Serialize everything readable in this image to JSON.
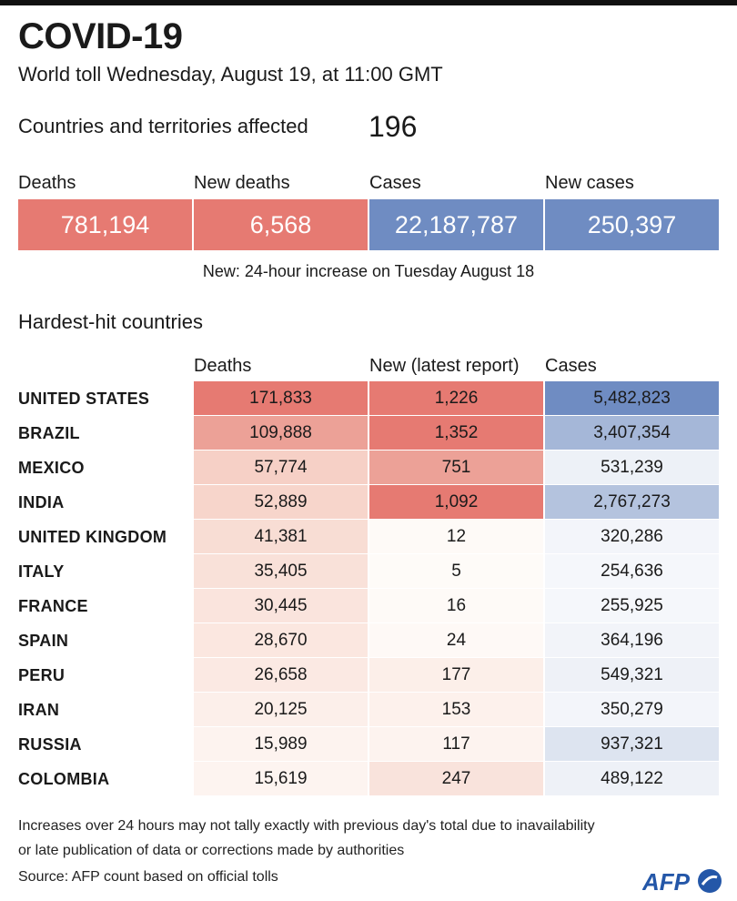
{
  "header": {
    "title": "COVID-19",
    "subtitle": "World toll Wednesday, August 19, at 11:00 GMT"
  },
  "affected": {
    "label": "Countries and territories affected",
    "value": "196"
  },
  "totals": [
    {
      "label": "Deaths",
      "value": "781,194",
      "color": "#e67a72"
    },
    {
      "label": "New deaths",
      "value": "6,568",
      "color": "#e67a72"
    },
    {
      "label": "Cases",
      "value": "22,187,787",
      "color": "#6f8cc2"
    },
    {
      "label": "New cases",
      "value": "250,397",
      "color": "#6f8cc2"
    }
  ],
  "note": "New: 24-hour increase on Tuesday August 18",
  "hardest_hit": {
    "title": "Hardest-hit countries",
    "columns": [
      "Deaths",
      "New (latest report)",
      "Cases"
    ],
    "rows": [
      {
        "country": "UNITED STATES",
        "deaths": "171,833",
        "new": "1,226",
        "cases": "5,482,823"
      },
      {
        "country": "BRAZIL",
        "deaths": "109,888",
        "new": "1,352",
        "cases": "3,407,354"
      },
      {
        "country": "MEXICO",
        "deaths": "57,774",
        "new": "751",
        "cases": "531,239"
      },
      {
        "country": "INDIA",
        "deaths": "52,889",
        "new": "1,092",
        "cases": "2,767,273"
      },
      {
        "country": "UNITED KINGDOM",
        "deaths": "41,381",
        "new": "12",
        "cases": "320,286"
      },
      {
        "country": "ITALY",
        "deaths": "35,405",
        "new": "5",
        "cases": "254,636"
      },
      {
        "country": "FRANCE",
        "deaths": "30,445",
        "new": "16",
        "cases": "255,925"
      },
      {
        "country": "SPAIN",
        "deaths": "28,670",
        "new": "24",
        "cases": "364,196"
      },
      {
        "country": "PERU",
        "deaths": "26,658",
        "new": "177",
        "cases": "549,321"
      },
      {
        "country": "IRAN",
        "deaths": "20,125",
        "new": "153",
        "cases": "350,279"
      },
      {
        "country": "RUSSIA",
        "deaths": "15,989",
        "new": "117",
        "cases": "937,321"
      },
      {
        "country": "COLOMBIA",
        "deaths": "15,619",
        "new": "247",
        "cases": "489,122"
      }
    ]
  },
  "footer": {
    "line1": "Increases over 24 hours may not tally exactly with previous day's total due to inavailability",
    "line2": "or late publication of data or corrections made by authorities",
    "source": "Source: AFP count based on official tolls",
    "logo": "AFP"
  },
  "colors": {
    "topbar": "#111111",
    "red_scale": [
      "#e67a72",
      "#eca197",
      "#f6d0c6",
      "#f8ddd4",
      "#fbe7e0",
      "#fdf3ef",
      "#fefaf7"
    ],
    "blue_scale": [
      "#6f8cc2",
      "#a5b7d8",
      "#c8d3e7",
      "#dde4f0",
      "#edf1f7"
    ],
    "logo_blue": "#2457a8"
  }
}
